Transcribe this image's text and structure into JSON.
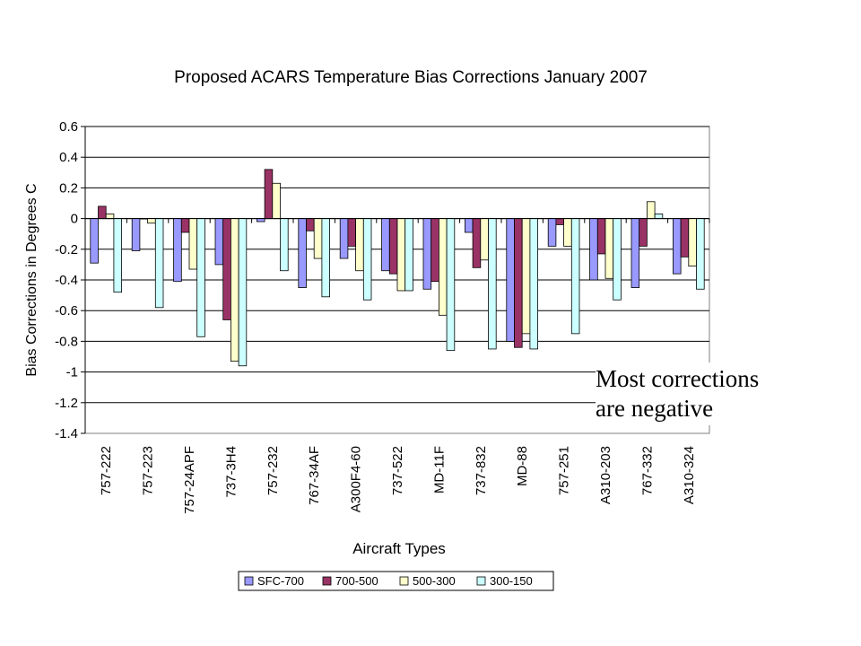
{
  "chart_data": {
    "type": "bar",
    "title": "Proposed ACARS Temperature Bias Corrections January 2007",
    "xlabel": "Aircraft Types",
    "ylabel": "Bias Corrections in Degrees C",
    "ylim": [
      -1.4,
      0.6
    ],
    "yticks": [
      0.6,
      0.4,
      0.2,
      0,
      -0.2,
      -0.4,
      -0.6,
      -0.8,
      -1,
      -1.2,
      -1.4
    ],
    "ytick_labels": [
      "0.6",
      "0.4",
      "0.2",
      "0",
      "-0.2",
      "-0.4",
      "-0.6",
      "-0.8",
      "-1",
      "-1.2",
      "-1.4"
    ],
    "grid": true,
    "legend_position": "bottom",
    "categories": [
      "757-222",
      "757-223",
      "757-24APF",
      "737-3H4",
      "757-232",
      "767-34AF",
      "A300F4-60",
      "737-522",
      "MD-11F",
      "737-832",
      "MD-88",
      "757-251",
      "A310-203",
      "767-332",
      "A310-324"
    ],
    "series": [
      {
        "name": "SFC-700",
        "color": "#9999ff",
        "values": [
          -0.29,
          -0.21,
          -0.41,
          -0.3,
          -0.02,
          -0.45,
          -0.26,
          -0.34,
          -0.46,
          -0.09,
          -0.8,
          -0.18,
          -0.4,
          -0.45,
          -0.36
        ]
      },
      {
        "name": "700-500",
        "color": "#993366",
        "values": [
          0.08,
          0.0,
          -0.09,
          -0.66,
          0.32,
          -0.08,
          -0.18,
          -0.36,
          -0.41,
          -0.32,
          -0.84,
          -0.04,
          -0.23,
          -0.18,
          -0.25
        ]
      },
      {
        "name": "500-300",
        "color": "#ffffcc",
        "values": [
          0.03,
          -0.03,
          -0.33,
          -0.93,
          0.23,
          -0.26,
          -0.34,
          -0.47,
          -0.63,
          -0.27,
          -0.75,
          -0.18,
          -0.39,
          0.11,
          -0.31
        ]
      },
      {
        "name": "300-150",
        "color": "#ccffff",
        "values": [
          -0.48,
          -0.58,
          -0.77,
          -0.96,
          -0.34,
          -0.51,
          -0.53,
          -0.47,
          -0.86,
          -0.85,
          -0.85,
          -0.75,
          -0.53,
          0.03,
          -0.46
        ]
      }
    ]
  },
  "annotation": {
    "line1": "Most corrections",
    "line2": "are negative"
  }
}
